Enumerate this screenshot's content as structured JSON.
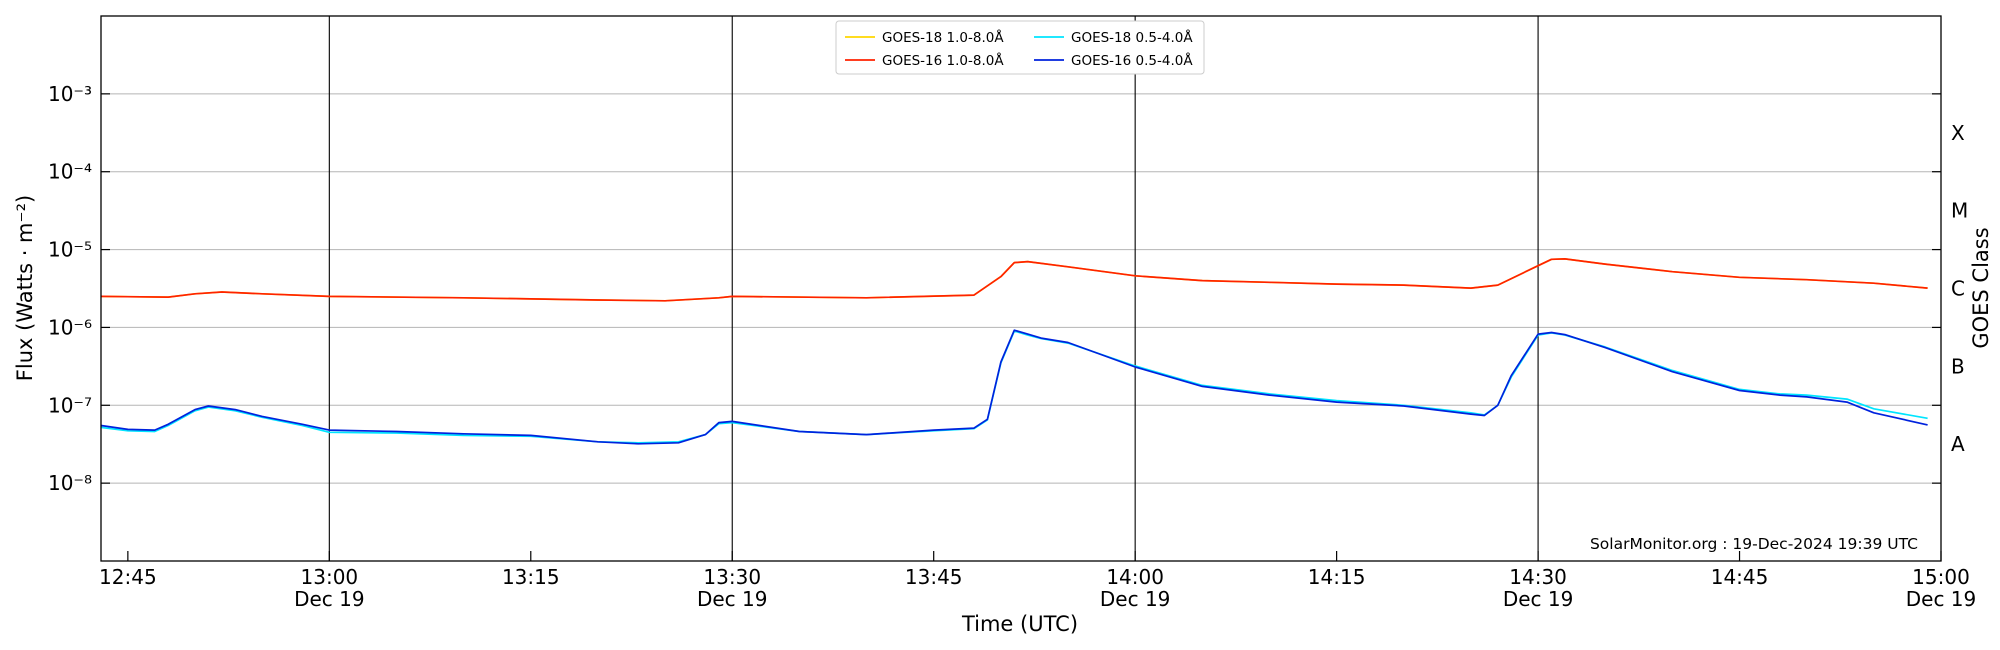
{
  "chart_data": {
    "type": "line",
    "title": "",
    "xlabel": "Time (UTC)",
    "ylabel": "Flux (Watts · m⁻²)",
    "y2label": "GOES Class",
    "yscale": "log",
    "ylim": [
      1e-09,
      0.01
    ],
    "xlim": [
      "12:43",
      "15:00"
    ],
    "x_ticks": [
      {
        "t": "12:45",
        "label": "12:45",
        "sub": ""
      },
      {
        "t": "13:00",
        "label": "13:00",
        "sub": "Dec 19"
      },
      {
        "t": "13:15",
        "label": "13:15",
        "sub": ""
      },
      {
        "t": "13:30",
        "label": "13:30",
        "sub": "Dec 19"
      },
      {
        "t": "13:45",
        "label": "13:45",
        "sub": ""
      },
      {
        "t": "14:00",
        "label": "14:00",
        "sub": "Dec 19"
      },
      {
        "t": "14:15",
        "label": "14:15",
        "sub": ""
      },
      {
        "t": "14:30",
        "label": "14:30",
        "sub": "Dec 19"
      },
      {
        "t": "14:45",
        "label": "14:45",
        "sub": ""
      },
      {
        "t": "15:00",
        "label": "15:00",
        "sub": "Dec 19"
      }
    ],
    "y_ticks": [
      {
        "exp": "-8",
        "label": "10⁻⁸"
      },
      {
        "exp": "-7",
        "label": "10⁻⁷"
      },
      {
        "exp": "-6",
        "label": "10⁻⁶"
      },
      {
        "exp": "-5",
        "label": "10⁻⁵"
      },
      {
        "exp": "-4",
        "label": "10⁻⁴"
      },
      {
        "exp": "-3",
        "label": "10⁻³"
      }
    ],
    "class_labels": [
      {
        "label": "A",
        "value": 3.16e-08
      },
      {
        "label": "B",
        "value": 3.16e-07
      },
      {
        "label": "C",
        "value": 3.16e-06
      },
      {
        "label": "M",
        "value": 3.16e-05
      },
      {
        "label": "X",
        "value": 0.000316
      }
    ],
    "vlines": [
      "13:00",
      "13:30",
      "14:00",
      "14:30"
    ],
    "grid": "horizontal",
    "legend": {
      "placement": "top-center",
      "entries": [
        {
          "name": "GOES-18 1.0-8.0Å",
          "color": "#ffd700"
        },
        {
          "name": "GOES-18 0.5-4.0Å",
          "color": "#00e5ff"
        },
        {
          "name": "GOES-16 1.0-8.0Å",
          "color": "#ff2200"
        },
        {
          "name": "GOES-16 0.5-4.0Å",
          "color": "#0022dd"
        }
      ]
    },
    "annotation": "SolarMonitor.org : 19-Dec-2024 19:39 UTC",
    "series": [
      {
        "name": "GOES-18 1.0-8.0Å",
        "color": "#ffd700",
        "x": [
          "12:43",
          "12:48",
          "12:50",
          "12:52",
          "12:55",
          "13:00",
          "13:10",
          "13:20",
          "13:25",
          "13:29",
          "13:30",
          "13:40",
          "13:48",
          "13:50",
          "13:51",
          "13:52",
          "13:55",
          "14:00",
          "14:05",
          "14:10",
          "14:15",
          "14:20",
          "14:25",
          "14:27",
          "14:30",
          "14:31",
          "14:32",
          "14:35",
          "14:40",
          "14:45",
          "14:50",
          "14:55",
          "14:59"
        ],
        "values": [
          2.5e-06,
          2.45e-06,
          2.7e-06,
          2.85e-06,
          2.7e-06,
          2.5e-06,
          2.4e-06,
          2.25e-06,
          2.2e-06,
          2.4e-06,
          2.5e-06,
          2.4e-06,
          2.6e-06,
          4.5e-06,
          6.8e-06,
          7e-06,
          6e-06,
          4.6e-06,
          4e-06,
          3.8e-06,
          3.6e-06,
          3.5e-06,
          3.2e-06,
          3.5e-06,
          6.2e-06,
          7.5e-06,
          7.6e-06,
          6.5e-06,
          5.2e-06,
          4.4e-06,
          4.1e-06,
          3.7e-06,
          3.2e-06
        ]
      },
      {
        "name": "GOES-16 1.0-8.0Å",
        "color": "#ff2200",
        "x": [
          "12:43",
          "12:48",
          "12:50",
          "12:52",
          "12:55",
          "13:00",
          "13:10",
          "13:20",
          "13:25",
          "13:29",
          "13:30",
          "13:40",
          "13:48",
          "13:50",
          "13:51",
          "13:52",
          "13:55",
          "14:00",
          "14:05",
          "14:10",
          "14:15",
          "14:20",
          "14:25",
          "14:27",
          "14:30",
          "14:31",
          "14:32",
          "14:35",
          "14:40",
          "14:45",
          "14:50",
          "14:55",
          "14:59"
        ],
        "values": [
          2.5e-06,
          2.45e-06,
          2.7e-06,
          2.85e-06,
          2.7e-06,
          2.5e-06,
          2.4e-06,
          2.25e-06,
          2.2e-06,
          2.4e-06,
          2.5e-06,
          2.4e-06,
          2.6e-06,
          4.5e-06,
          6.8e-06,
          7e-06,
          6e-06,
          4.6e-06,
          4e-06,
          3.8e-06,
          3.6e-06,
          3.5e-06,
          3.2e-06,
          3.5e-06,
          6.2e-06,
          7.5e-06,
          7.6e-06,
          6.5e-06,
          5.2e-06,
          4.4e-06,
          4.1e-06,
          3.7e-06,
          3.2e-06
        ]
      },
      {
        "name": "GOES-18 0.5-4.0Å",
        "color": "#00e5ff",
        "x": [
          "12:43",
          "12:45",
          "12:47",
          "12:48",
          "12:50",
          "12:51",
          "12:53",
          "12:55",
          "12:58",
          "13:00",
          "13:05",
          "13:10",
          "13:15",
          "13:20",
          "13:23",
          "13:26",
          "13:28",
          "13:29",
          "13:30",
          "13:35",
          "13:40",
          "13:45",
          "13:48",
          "13:49",
          "13:50",
          "13:51",
          "13:52",
          "13:53",
          "13:55",
          "14:00",
          "14:05",
          "14:10",
          "14:15",
          "14:20",
          "14:25",
          "14:26",
          "14:27",
          "14:28",
          "14:30",
          "14:31",
          "14:32",
          "14:35",
          "14:40",
          "14:45",
          "14:48",
          "14:50",
          "14:53",
          "14:55",
          "14:59"
        ],
        "values": [
          5.2e-08,
          4.7e-08,
          4.6e-08,
          5.5e-08,
          8.5e-08,
          9.5e-08,
          8.5e-08,
          7e-08,
          5.5e-08,
          4.5e-08,
          4.4e-08,
          4.1e-08,
          4e-08,
          3.4e-08,
          3.3e-08,
          3.4e-08,
          4.2e-08,
          5.8e-08,
          6e-08,
          4.6e-08,
          4.2e-08,
          4.7e-08,
          5e-08,
          6.5e-08,
          3.5e-07,
          9e-07,
          8e-07,
          7.2e-07,
          6.3e-07,
          3.2e-07,
          1.8e-07,
          1.4e-07,
          1.15e-07,
          1e-07,
          8e-08,
          7.5e-08,
          1e-07,
          2.3e-07,
          8e-07,
          8.5e-07,
          8e-07,
          5.6e-07,
          2.8e-07,
          1.6e-07,
          1.4e-07,
          1.35e-07,
          1.2e-07,
          9e-08,
          6.8e-08
        ]
      },
      {
        "name": "GOES-16 0.5-4.0Å",
        "color": "#0022dd",
        "x": [
          "12:43",
          "12:45",
          "12:47",
          "12:48",
          "12:50",
          "12:51",
          "12:53",
          "12:55",
          "12:58",
          "13:00",
          "13:05",
          "13:10",
          "13:15",
          "13:20",
          "13:23",
          "13:26",
          "13:28",
          "13:29",
          "13:30",
          "13:35",
          "13:40",
          "13:45",
          "13:48",
          "13:49",
          "13:50",
          "13:51",
          "13:52",
          "13:53",
          "13:55",
          "14:00",
          "14:05",
          "14:10",
          "14:15",
          "14:20",
          "14:25",
          "14:26",
          "14:27",
          "14:28",
          "14:30",
          "14:31",
          "14:32",
          "14:35",
          "14:40",
          "14:45",
          "14:48",
          "14:50",
          "14:53",
          "14:55",
          "14:59"
        ],
        "values": [
          5.5e-08,
          4.9e-08,
          4.8e-08,
          5.7e-08,
          8.8e-08,
          9.8e-08,
          8.8e-08,
          7.2e-08,
          5.7e-08,
          4.8e-08,
          4.6e-08,
          4.3e-08,
          4.1e-08,
          3.4e-08,
          3.2e-08,
          3.3e-08,
          4.2e-08,
          6e-08,
          6.2e-08,
          4.6e-08,
          4.2e-08,
          4.8e-08,
          5.1e-08,
          6.6e-08,
          3.6e-07,
          9.2e-07,
          8.2e-07,
          7.3e-07,
          6.4e-07,
          3.1e-07,
          1.75e-07,
          1.35e-07,
          1.1e-07,
          9.8e-08,
          7.7e-08,
          7.4e-08,
          1e-07,
          2.4e-07,
          8.2e-07,
          8.6e-07,
          8.1e-07,
          5.5e-07,
          2.7e-07,
          1.55e-07,
          1.35e-07,
          1.28e-07,
          1.1e-07,
          8e-08,
          5.6e-08
        ]
      }
    ]
  }
}
